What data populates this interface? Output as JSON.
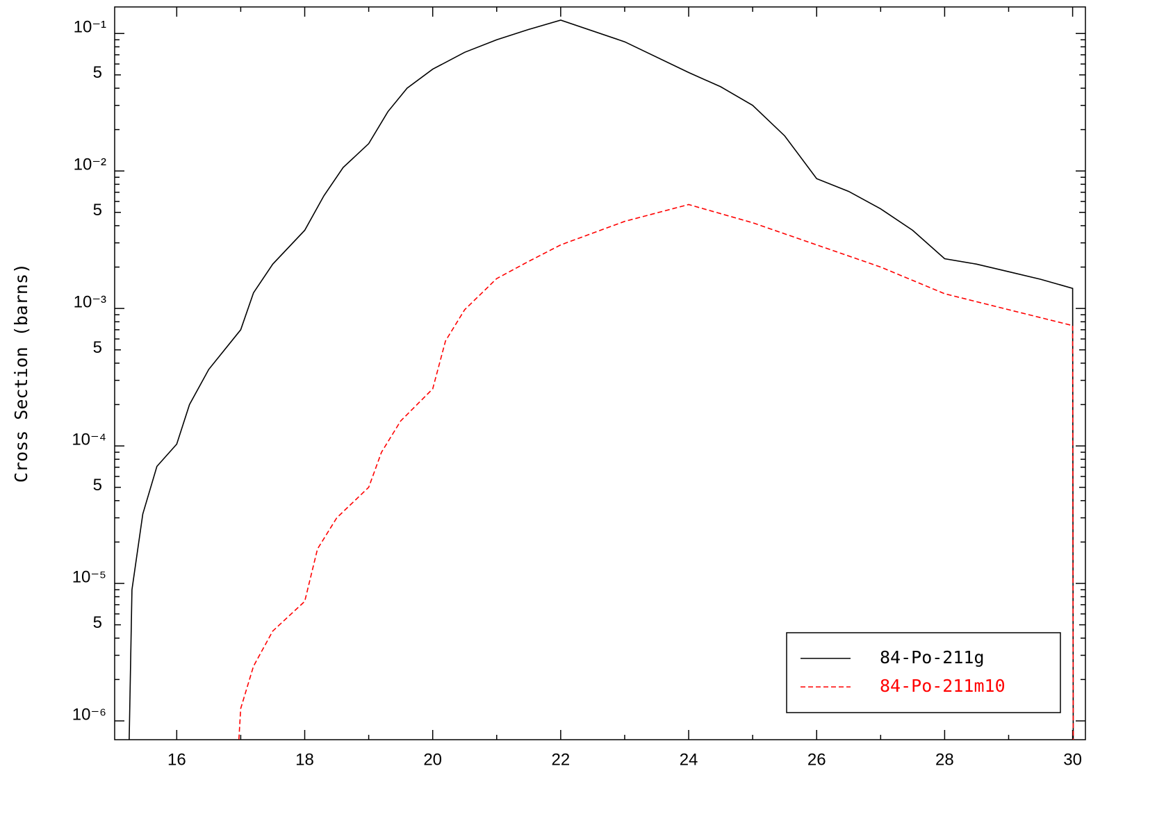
{
  "chart_data": {
    "type": "line",
    "ylabel": "Cross Section (barns)",
    "ylog": true,
    "xlim": [
      15.03,
      30.2
    ],
    "ylim": [
      7.3e-07,
      0.156
    ],
    "xticks": [
      16,
      18,
      20,
      22,
      24,
      26,
      28,
      30
    ],
    "xminor_ticks": [
      17,
      19,
      21,
      23,
      25,
      27,
      29
    ],
    "yticks": [
      {
        "value": 1e-06,
        "label": "10⁻⁶"
      },
      {
        "value": 5e-06,
        "label": "5"
      },
      {
        "value": 1e-05,
        "label": "10⁻⁵"
      },
      {
        "value": 5e-05,
        "label": "5"
      },
      {
        "value": 0.0001,
        "label": "10⁻⁴"
      },
      {
        "value": 0.0005,
        "label": "5"
      },
      {
        "value": 0.001,
        "label": "10⁻³"
      },
      {
        "value": 0.005,
        "label": "5"
      },
      {
        "value": 0.01,
        "label": "10⁻²"
      },
      {
        "value": 0.05,
        "label": "5"
      },
      {
        "value": 0.1,
        "label": "10⁻¹"
      }
    ],
    "yminor_ticks": [
      2e-06,
      3e-06,
      4e-06,
      6e-06,
      7e-06,
      8e-06,
      9e-06,
      2e-05,
      3e-05,
      4e-05,
      6e-05,
      7e-05,
      8e-05,
      9e-05,
      0.0002,
      0.0003,
      0.0004,
      0.0006,
      0.0007,
      0.0008,
      0.0009,
      0.002,
      0.003,
      0.004,
      0.006,
      0.007,
      0.008,
      0.009,
      0.02,
      0.03,
      0.04,
      0.06,
      0.07,
      0.08,
      0.09
    ],
    "legend": "lower right",
    "series": [
      {
        "name": "84-Po-211g",
        "color": "#000000",
        "linestyle": "solid",
        "x": [
          15.25,
          15.3,
          15.47,
          15.69,
          16,
          16.2,
          16.5,
          17,
          17.2,
          17.5,
          18,
          18.3,
          18.6,
          19,
          19.3,
          19.6,
          20,
          20.5,
          21,
          21.5,
          22,
          23,
          24,
          24.5,
          25,
          25.5,
          26,
          26.5,
          27,
          27.5,
          28,
          28.5,
          29,
          29.5,
          30,
          30.01
        ],
        "values": [
          5e-07,
          9e-06,
          3.2e-05,
          7.1e-05,
          0.000103,
          0.0002,
          0.00036,
          0.0007,
          0.0013,
          0.0021,
          0.0037,
          0.0066,
          0.0106,
          0.0158,
          0.027,
          0.04,
          0.055,
          0.073,
          0.09,
          0.107,
          0.125,
          0.087,
          0.052,
          0.041,
          0.03,
          0.018,
          0.0088,
          0.0071,
          0.0053,
          0.0037,
          0.0023,
          0.0021,
          0.00185,
          0.00163,
          0.0014,
          5e-07
        ]
      },
      {
        "name": "84-Po-211m10",
        "color": "#ff0000",
        "linestyle": "dashed",
        "x": [
          16.95,
          17,
          17.2,
          17.5,
          18,
          18.2,
          18.5,
          19,
          19.2,
          19.5,
          20,
          20.2,
          20.5,
          21,
          21.5,
          22,
          23,
          24,
          25,
          26,
          27,
          28,
          29,
          30,
          30.01
        ],
        "values": [
          5e-07,
          1.23e-06,
          2.5e-06,
          4.5e-06,
          7.4e-06,
          1.78e-05,
          3e-05,
          5e-05,
          9e-05,
          0.000152,
          0.00026,
          0.00058,
          0.00098,
          0.00165,
          0.0022,
          0.0029,
          0.0043,
          0.0057,
          0.0042,
          0.0029,
          0.002,
          0.00128,
          0.00098,
          0.00075,
          5e-07
        ]
      }
    ]
  }
}
